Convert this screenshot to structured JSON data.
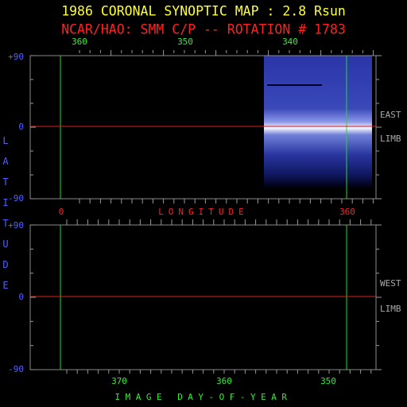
{
  "header": {
    "title": "1986 CORONAL SYNOPTIC MAP : 2.8 Rsun",
    "subtitle": "NCAR/HAO: SMM C/P -- ROTATION # 1783"
  },
  "top_axis": {
    "labels": [
      "360",
      "350",
      "340"
    ]
  },
  "upper_panel": {
    "y_labels": [
      "+90",
      "0",
      "-90"
    ],
    "side_labels": [
      "EAST",
      "LIMB"
    ]
  },
  "vertical_label": "LATITUDE",
  "middle_axis": {
    "labels": [
      "0",
      "360"
    ],
    "title": "LONGITUDE"
  },
  "lower_panel": {
    "y_labels": [
      "+90",
      "0",
      "-90"
    ],
    "side_labels": [
      "WEST",
      "LIMB"
    ]
  },
  "bottom_axis": {
    "labels": [
      "370",
      "360",
      "350"
    ],
    "title": "IMAGE DAY-OF-YEAR"
  }
}
